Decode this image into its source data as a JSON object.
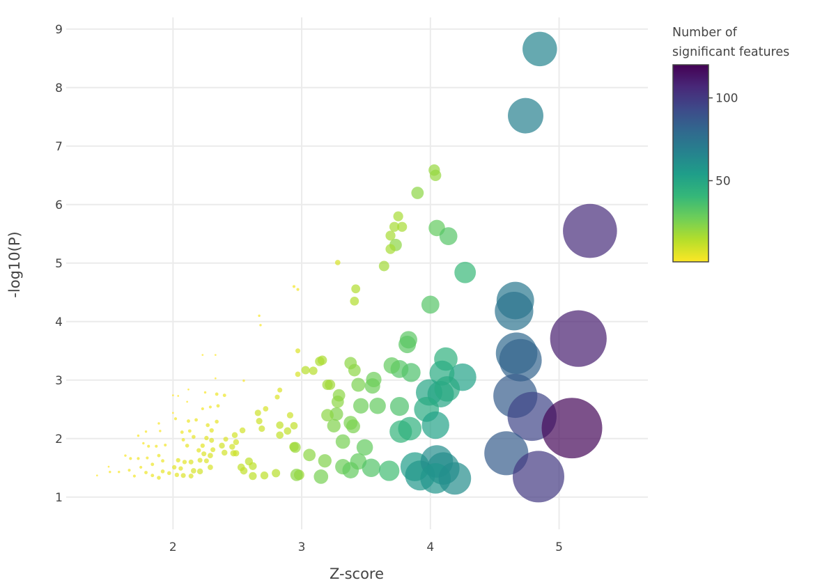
{
  "chart_data": {
    "type": "scatter",
    "subtype": "bubble",
    "xlabel": "Z-score",
    "ylabel": "-log10(P)",
    "xlim": [
      1.17,
      5.69
    ],
    "ylim": [
      0.45,
      9.2
    ],
    "xticks": [
      2,
      3,
      4,
      5
    ],
    "yticks": [
      1,
      2,
      3,
      4,
      5,
      6,
      7,
      8,
      9
    ],
    "grid": true,
    "colorbar": {
      "title_line1": "Number of",
      "title_line2": "significant features",
      "range": [
        1,
        120
      ],
      "ticks": [
        50,
        100
      ],
      "colorscale": "viridis-reversed",
      "placement": "right"
    },
    "point_fields": [
      "z_score",
      "neg_log10_p",
      "n_significant_features"
    ],
    "points": [
      [
        1.41,
        1.37,
        1
      ],
      [
        1.5,
        1.52,
        1
      ],
      [
        1.51,
        1.43,
        2
      ],
      [
        1.58,
        1.43,
        2
      ],
      [
        1.63,
        1.71,
        2
      ],
      [
        1.67,
        1.66,
        3
      ],
      [
        1.66,
        1.46,
        3
      ],
      [
        1.7,
        1.36,
        3
      ],
      [
        1.73,
        2.05,
        2
      ],
      [
        1.73,
        1.66,
        3
      ],
      [
        1.75,
        1.51,
        3
      ],
      [
        1.77,
        1.92,
        2
      ],
      [
        1.79,
        2.12,
        2
      ],
      [
        1.79,
        1.42,
        4
      ],
      [
        1.81,
        1.87,
        3
      ],
      [
        1.8,
        1.67,
        3
      ],
      [
        1.84,
        1.56,
        4
      ],
      [
        1.84,
        1.37,
        4
      ],
      [
        1.87,
        1.87,
        3
      ],
      [
        1.89,
        1.71,
        4
      ],
      [
        1.89,
        2.26,
        2
      ],
      [
        1.9,
        2.13,
        2
      ],
      [
        1.89,
        1.33,
        5
      ],
      [
        1.92,
        1.62,
        4
      ],
      [
        1.94,
        1.89,
        3
      ],
      [
        1.92,
        1.44,
        5
      ],
      [
        1.97,
        1.41,
        5
      ],
      [
        2.0,
        2.44,
        1
      ],
      [
        2.0,
        2.74,
        1
      ],
      [
        2.02,
        2.34,
        3
      ],
      [
        2.01,
        1.51,
        6
      ],
      [
        2.03,
        1.38,
        6
      ],
      [
        2.04,
        1.63,
        6
      ],
      [
        2.04,
        2.73,
        1
      ],
      [
        2.06,
        1.49,
        6
      ],
      [
        2.07,
        2.11,
        4
      ],
      [
        2.08,
        1.98,
        4
      ],
      [
        2.09,
        1.6,
        6
      ],
      [
        2.08,
        1.37,
        7
      ],
      [
        2.11,
        2.63,
        1
      ],
      [
        2.11,
        1.88,
        5
      ],
      [
        2.12,
        2.3,
        4
      ],
      [
        2.12,
        2.84,
        1
      ],
      [
        2.13,
        2.13,
        4
      ],
      [
        2.14,
        1.6,
        7
      ],
      [
        2.14,
        1.36,
        7
      ],
      [
        2.16,
        2.03,
        5
      ],
      [
        2.16,
        1.45,
        8
      ],
      [
        2.18,
        2.32,
        4
      ],
      [
        2.2,
        1.8,
        6
      ],
      [
        2.21,
        1.44,
        9
      ],
      [
        2.21,
        1.63,
        7
      ],
      [
        2.23,
        1.88,
        6
      ],
      [
        2.23,
        2.51,
        3
      ],
      [
        2.23,
        3.43,
        1
      ],
      [
        2.24,
        1.74,
        7
      ],
      [
        2.25,
        2.79,
        2
      ],
      [
        2.26,
        1.62,
        7
      ],
      [
        2.26,
        2.01,
        6
      ],
      [
        2.27,
        2.23,
        5
      ],
      [
        2.29,
        1.51,
        8
      ],
      [
        2.29,
        1.71,
        8
      ],
      [
        2.29,
        2.54,
        3
      ],
      [
        2.3,
        2.14,
        6
      ],
      [
        2.3,
        1.97,
        7
      ],
      [
        2.31,
        1.81,
        7
      ],
      [
        2.33,
        3.03,
        1
      ],
      [
        2.33,
        3.43,
        1
      ],
      [
        2.34,
        2.29,
        5
      ],
      [
        2.34,
        2.76,
        4
      ],
      [
        2.35,
        2.56,
        4
      ],
      [
        2.38,
        1.88,
        9
      ],
      [
        2.4,
        2.74,
        4
      ],
      [
        2.4,
        1.76,
        9
      ],
      [
        2.41,
        1.99,
        7
      ],
      [
        2.46,
        1.86,
        9
      ],
      [
        2.47,
        1.75,
        10
      ],
      [
        2.48,
        2.06,
        9
      ],
      [
        2.49,
        1.94,
        9
      ],
      [
        2.49,
        1.75,
        10
      ],
      [
        2.54,
        2.14,
        9
      ],
      [
        2.55,
        2.99,
        2
      ],
      [
        2.53,
        1.51,
        12
      ],
      [
        2.55,
        1.45,
        12
      ],
      [
        2.59,
        1.61,
        13
      ],
      [
        2.62,
        1.53,
        13
      ],
      [
        2.62,
        1.36,
        13
      ],
      [
        2.66,
        2.44,
        10
      ],
      [
        2.67,
        4.1,
        2
      ],
      [
        2.68,
        3.94,
        2
      ],
      [
        2.67,
        2.3,
        10
      ],
      [
        2.69,
        2.17,
        10
      ],
      [
        2.72,
        2.51,
        8
      ],
      [
        2.71,
        1.37,
        13
      ],
      [
        2.8,
        1.41,
        14
      ],
      [
        2.81,
        2.71,
        7
      ],
      [
        2.83,
        2.83,
        7
      ],
      [
        2.83,
        2.23,
        12
      ],
      [
        2.83,
        2.06,
        12
      ],
      [
        2.89,
        2.13,
        12
      ],
      [
        2.91,
        2.4,
        10
      ],
      [
        2.94,
        1.86,
        16
      ],
      [
        2.94,
        2.22,
        12
      ],
      [
        2.94,
        4.6,
        3
      ],
      [
        2.97,
        4.55,
        3
      ],
      [
        2.97,
        3.5,
        7
      ],
      [
        2.97,
        3.1,
        8
      ],
      [
        2.98,
        1.38,
        18
      ],
      [
        2.95,
        1.85,
        19
      ],
      [
        4.03,
        6.59,
        20
      ],
      [
        4.04,
        6.5,
        20
      ],
      [
        3.9,
        6.2,
        22
      ],
      [
        3.75,
        5.8,
        17
      ],
      [
        3.72,
        5.62,
        17
      ],
      [
        3.78,
        5.62,
        17
      ],
      [
        3.69,
        5.47,
        17
      ],
      [
        3.73,
        5.31,
        22
      ],
      [
        3.69,
        5.24,
        17
      ],
      [
        3.64,
        4.95,
        18
      ],
      [
        3.28,
        5.01,
        8
      ],
      [
        3.42,
        4.56,
        15
      ],
      [
        3.41,
        4.35,
        15
      ],
      [
        4.05,
        5.6,
        30
      ],
      [
        4.14,
        5.46,
        33
      ],
      [
        4.27,
        4.84,
        40
      ],
      [
        4.0,
        4.29,
        33
      ],
      [
        3.83,
        3.69,
        32
      ],
      [
        3.82,
        3.61,
        32
      ],
      [
        4.12,
        3.36,
        44
      ],
      [
        4.25,
        3.05,
        52
      ],
      [
        4.09,
        3.12,
        47
      ],
      [
        3.99,
        2.79,
        50
      ],
      [
        4.08,
        2.76,
        50
      ],
      [
        4.13,
        2.85,
        48
      ],
      [
        3.97,
        2.5,
        47
      ],
      [
        4.04,
        2.23,
        52
      ],
      [
        3.77,
        2.12,
        42
      ],
      [
        3.84,
        2.17,
        44
      ],
      [
        3.76,
        2.55,
        35
      ],
      [
        3.59,
        2.56,
        30
      ],
      [
        3.46,
        2.56,
        28
      ],
      [
        3.85,
        3.13,
        35
      ],
      [
        3.76,
        3.19,
        33
      ],
      [
        3.7,
        3.25,
        30
      ],
      [
        3.56,
        3.01,
        28
      ],
      [
        3.55,
        2.9,
        28
      ],
      [
        3.44,
        2.92,
        25
      ],
      [
        3.41,
        3.17,
        22
      ],
      [
        3.38,
        3.29,
        22
      ],
      [
        3.22,
        2.92,
        18
      ],
      [
        3.2,
        2.92,
        18
      ],
      [
        3.16,
        3.34,
        16
      ],
      [
        3.14,
        3.32,
        16
      ],
      [
        3.09,
        3.16,
        14
      ],
      [
        3.03,
        3.17,
        14
      ],
      [
        3.29,
        2.74,
        22
      ],
      [
        3.28,
        2.63,
        22
      ],
      [
        3.27,
        2.42,
        24
      ],
      [
        3.2,
        2.4,
        22
      ],
      [
        3.25,
        2.22,
        24
      ],
      [
        3.38,
        2.27,
        25
      ],
      [
        3.4,
        2.21,
        25
      ],
      [
        3.32,
        1.95,
        26
      ],
      [
        3.49,
        1.85,
        30
      ],
      [
        3.06,
        1.72,
        22
      ],
      [
        3.18,
        1.62,
        24
      ],
      [
        3.15,
        1.35,
        26
      ],
      [
        2.96,
        1.38,
        22
      ],
      [
        3.32,
        1.52,
        28
      ],
      [
        3.38,
        1.46,
        30
      ],
      [
        3.44,
        1.61,
        30
      ],
      [
        3.54,
        1.5,
        34
      ],
      [
        3.68,
        1.45,
        38
      ],
      [
        3.88,
        1.52,
        55
      ],
      [
        3.92,
        1.37,
        57
      ],
      [
        4.05,
        1.61,
        62
      ],
      [
        4.1,
        1.49,
        62
      ],
      [
        4.04,
        1.32,
        58
      ],
      [
        4.19,
        1.32,
        62
      ],
      [
        4.85,
        8.66,
        66
      ],
      [
        4.74,
        7.52,
        68
      ],
      [
        4.66,
        4.36,
        72
      ],
      [
        4.65,
        4.18,
        74
      ],
      [
        4.67,
        3.46,
        80
      ],
      [
        4.7,
        3.34,
        82
      ],
      [
        4.66,
        2.73,
        85
      ],
      [
        4.79,
        2.38,
        95
      ],
      [
        4.59,
        1.75,
        85
      ],
      [
        4.84,
        1.35,
        100
      ],
      [
        5.24,
        5.55,
        105
      ],
      [
        5.15,
        3.71,
        110
      ],
      [
        5.1,
        2.18,
        118
      ]
    ]
  }
}
